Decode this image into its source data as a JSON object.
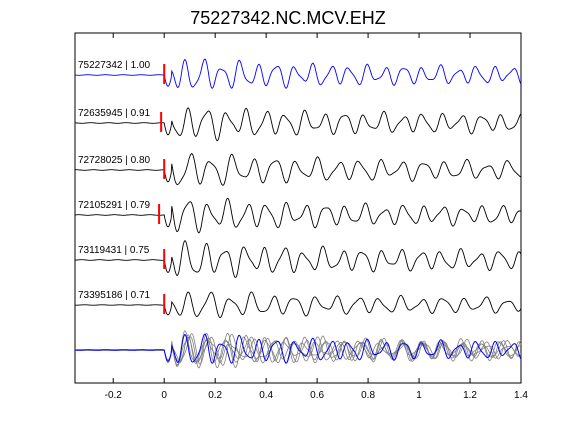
{
  "chart_data": {
    "type": "line",
    "title": "75227342.NC.MCV.EHZ",
    "xlabel": "",
    "ylabel": "",
    "xlim": [
      -0.35,
      1.4
    ],
    "xticks": [
      -0.2,
      0,
      0.2,
      0.4,
      0.6,
      0.8,
      1,
      1.2,
      1.4
    ],
    "xtick_labels": [
      "-0.2",
      "0",
      "0.2",
      "0.4",
      "0.6",
      "0.8",
      "1",
      "1.2",
      "1.4"
    ],
    "grid": false,
    "pick_time": 0,
    "colors": {
      "reference": "#0000ff",
      "match": "#000000",
      "overlay": "#808080",
      "pick": "#ff0000"
    },
    "series": [
      {
        "name": "75227342 | 1.00",
        "label": "75227342 | 1.00",
        "correlation": 1.0,
        "pick_offset": 0.0,
        "color": "#0000ff",
        "amp": 0.85,
        "freq": 14,
        "seed": 1
      },
      {
        "name": "72635945 | 0.91",
        "label": "72635945 | 0.91",
        "correlation": 0.91,
        "pick_offset": -0.012,
        "color": "#000000",
        "amp": 0.9,
        "freq": 13,
        "seed": 2
      },
      {
        "name": "72728025 | 0.80",
        "label": "72728025 | 0.80",
        "correlation": 0.8,
        "pick_offset": 0.0,
        "color": "#000000",
        "amp": 0.9,
        "freq": 12,
        "seed": 3
      },
      {
        "name": "72105291 | 0.79",
        "label": "72105291 | 0.79",
        "correlation": 0.79,
        "pick_offset": -0.02,
        "color": "#000000",
        "amp": 0.9,
        "freq": 13,
        "seed": 4
      },
      {
        "name": "73119431 | 0.75",
        "label": "73119431 | 0.75",
        "correlation": 0.75,
        "pick_offset": 0.0,
        "color": "#000000",
        "amp": 0.95,
        "freq": 13,
        "seed": 5
      },
      {
        "name": "73395186 | 0.71",
        "label": "73395186 | 0.71",
        "correlation": 0.71,
        "pick_offset": 0.0,
        "color": "#000000",
        "amp": 0.75,
        "freq": 12,
        "seed": 6
      }
    ],
    "stack": {
      "label": "",
      "overlay_color": "#808080",
      "reference_color": "#0000ff"
    }
  }
}
